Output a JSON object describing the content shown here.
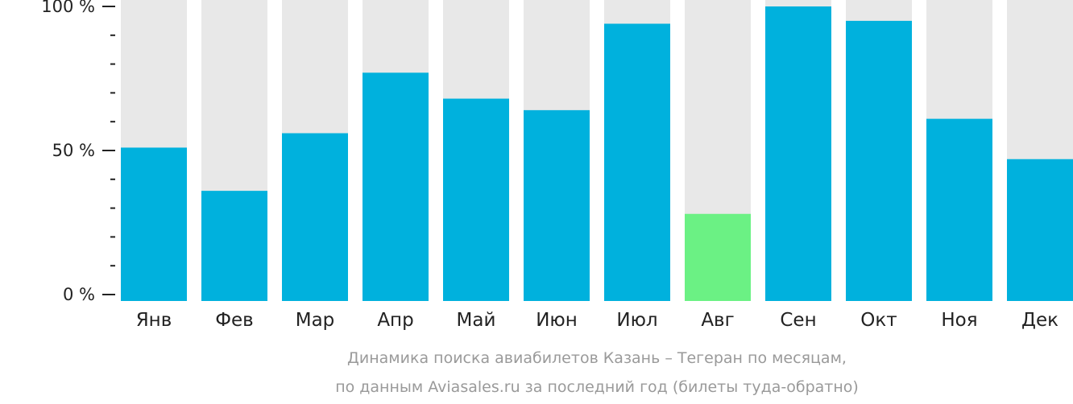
{
  "chart_data": {
    "type": "bar",
    "categories": [
      "Янв",
      "Фев",
      "Мар",
      "Апр",
      "Май",
      "Июн",
      "Июл",
      "Авг",
      "Сен",
      "Окт",
      "Ноя",
      "Дек"
    ],
    "values": [
      51,
      36,
      56,
      77,
      68,
      64,
      94,
      28,
      100,
      95,
      61,
      47
    ],
    "highlight_index": 7,
    "ylim": [
      0,
      100
    ],
    "yticks": [
      {
        "value": 100,
        "label": "100 %"
      },
      {
        "value": 50,
        "label": "50 %"
      },
      {
        "value": 0,
        "label": "0 %"
      }
    ],
    "minor_tick_step": 10,
    "caption_line1": "Динамика поиска авиабилетов Казань – Тегеран по месяцам,",
    "caption_line2": "по данным Aviasales.ru за последний год (билеты туда-обратно)",
    "colors": {
      "bar": "#00b1dd",
      "highlight": "#6bf184",
      "track": "#e8e8e8",
      "axis": "#222222"
    }
  }
}
